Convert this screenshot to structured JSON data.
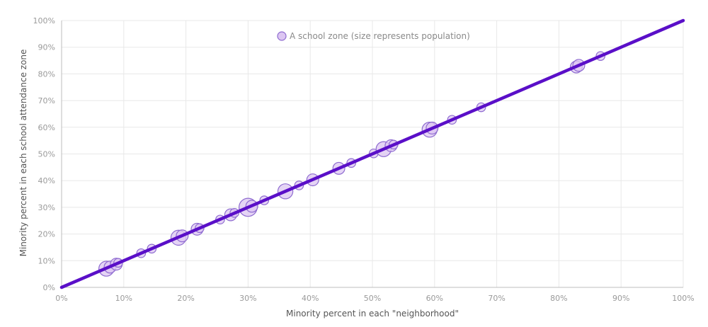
{
  "chart_data": {
    "type": "scatter",
    "xlabel": "Minority percent in each \"neighborhood\"",
    "ylabel": "Minority percent in each school attendance zone",
    "xlim": [
      0,
      100
    ],
    "ylim": [
      0,
      100
    ],
    "x_ticks": [
      "0%",
      "10%",
      "20%",
      "30%",
      "40%",
      "50%",
      "60%",
      "70%",
      "80%",
      "90%",
      "100%"
    ],
    "y_ticks": [
      "0%",
      "10%",
      "20%",
      "30%",
      "40%",
      "50%",
      "60%",
      "70%",
      "80%",
      "90%",
      "100%"
    ],
    "grid": true,
    "legend": {
      "label": "A school zone (size represents population)",
      "placement": "top-center"
    },
    "reference_line": {
      "from": [
        0,
        0
      ],
      "to": [
        100,
        100
      ]
    },
    "colors": {
      "point_fill": "#dcc6f2",
      "point_stroke": "#8e6bd0",
      "line": "#5a0fc8"
    },
    "series": [
      {
        "points": [
          {
            "x": 7.2,
            "y": 7.0,
            "size": 3
          },
          {
            "x": 7.8,
            "y": 7.6,
            "size": 2
          },
          {
            "x": 8.8,
            "y": 8.7,
            "size": 2
          },
          {
            "x": 9.1,
            "y": 9.2,
            "size": 1
          },
          {
            "x": 12.8,
            "y": 12.8,
            "size": 1
          },
          {
            "x": 14.5,
            "y": 14.5,
            "size": 1
          },
          {
            "x": 18.8,
            "y": 18.6,
            "size": 3
          },
          {
            "x": 19.4,
            "y": 19.3,
            "size": 2
          },
          {
            "x": 21.8,
            "y": 21.8,
            "size": 2
          },
          {
            "x": 22.2,
            "y": 22.2,
            "size": 1
          },
          {
            "x": 25.5,
            "y": 25.4,
            "size": 1
          },
          {
            "x": 27.2,
            "y": 27.2,
            "size": 2
          },
          {
            "x": 27.8,
            "y": 27.9,
            "size": 1
          },
          {
            "x": 30.0,
            "y": 30.0,
            "size": 4
          },
          {
            "x": 30.6,
            "y": 30.4,
            "size": 2
          },
          {
            "x": 32.6,
            "y": 32.6,
            "size": 1
          },
          {
            "x": 36.0,
            "y": 36.0,
            "size": 3
          },
          {
            "x": 38.2,
            "y": 38.2,
            "size": 1
          },
          {
            "x": 40.4,
            "y": 40.3,
            "size": 2
          },
          {
            "x": 44.6,
            "y": 44.6,
            "size": 2
          },
          {
            "x": 46.6,
            "y": 46.6,
            "size": 1
          },
          {
            "x": 50.2,
            "y": 50.2,
            "size": 1
          },
          {
            "x": 51.8,
            "y": 51.8,
            "size": 3
          },
          {
            "x": 53.0,
            "y": 53.1,
            "size": 2
          },
          {
            "x": 53.4,
            "y": 53.5,
            "size": 1
          },
          {
            "x": 59.2,
            "y": 59.1,
            "size": 3
          },
          {
            "x": 59.6,
            "y": 59.7,
            "size": 2
          },
          {
            "x": 62.8,
            "y": 62.8,
            "size": 1
          },
          {
            "x": 67.5,
            "y": 67.5,
            "size": 1
          },
          {
            "x": 82.8,
            "y": 82.6,
            "size": 2
          },
          {
            "x": 83.2,
            "y": 83.2,
            "size": 2
          },
          {
            "x": 86.7,
            "y": 86.7,
            "size": 1
          }
        ]
      }
    ]
  }
}
